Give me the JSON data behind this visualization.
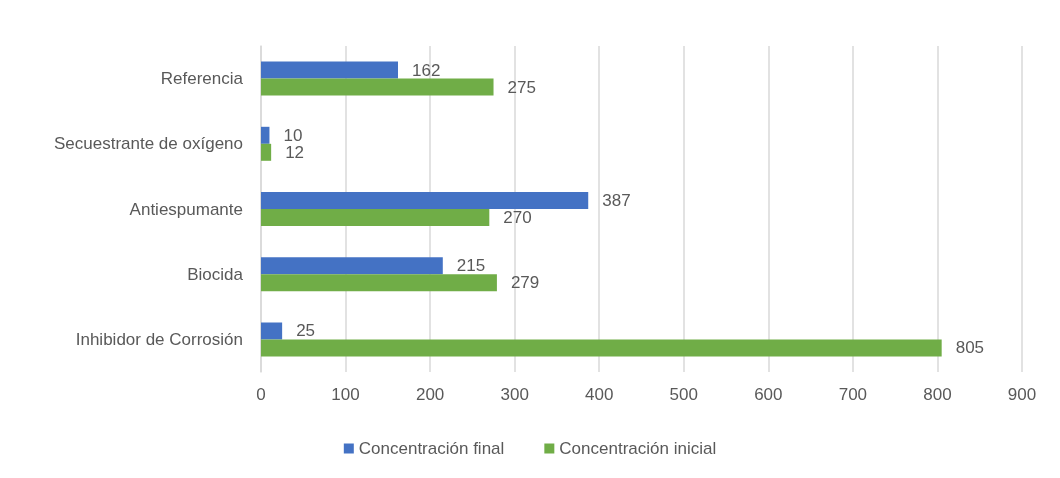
{
  "chart_data": {
    "type": "bar",
    "orientation": "horizontal",
    "categories": [
      "Referencia",
      "Secuestrante de oxígeno",
      "Antiespumante",
      "Biocida",
      "Inhibidor de Corrosión"
    ],
    "series": [
      {
        "name": "Concentración final",
        "color": "#4472c4",
        "values": [
          162,
          10,
          387,
          215,
          25
        ]
      },
      {
        "name": "Concentración inicial",
        "color": "#70ad47",
        "values": [
          275,
          12,
          270,
          279,
          805
        ]
      }
    ],
    "xlim": [
      0,
      900
    ],
    "xticks": [
      0,
      100,
      200,
      300,
      400,
      500,
      600,
      700,
      800,
      900
    ],
    "grid": "x",
    "legend": "bottom",
    "data_labels": true
  }
}
